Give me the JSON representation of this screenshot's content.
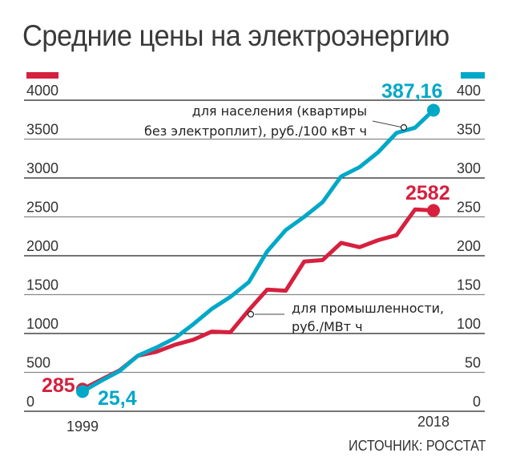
{
  "chart_data": {
    "type": "line",
    "title": "Средние цены на электроэнергию",
    "source": "ИСТОЧНИК: РОССТАТ",
    "x": [
      1999,
      2000,
      2001,
      2002,
      2003,
      2004,
      2005,
      2006,
      2007,
      2008,
      2009,
      2010,
      2011,
      2012,
      2013,
      2014,
      2015,
      2016,
      2017,
      2018
    ],
    "x_tick_labels": [
      "1999",
      "2018"
    ],
    "left_axis": {
      "ylim": [
        0,
        4000
      ],
      "ticks": [
        "0",
        "500",
        "1000",
        "1500",
        "2000",
        "2500",
        "3000",
        "3500",
        "4000"
      ]
    },
    "right_axis": {
      "ylim": [
        0,
        400
      ],
      "ticks": [
        "0",
        "50",
        "100",
        "150",
        "200",
        "250",
        "300",
        "350",
        "400"
      ]
    },
    "grid": true,
    "series": [
      {
        "name": "для промышленности, руб./МВт ч",
        "label_lines": [
          "для промышленности,",
          "руб./МВт ч"
        ],
        "axis": "left",
        "color": "#d6203e",
        "values": [
          285,
          405,
          525,
          715,
          765,
          855,
          920,
          1025,
          1015,
          1300,
          1565,
          1550,
          1925,
          1945,
          2165,
          2110,
          2200,
          2265,
          2595,
          2582
        ],
        "start_label": "285",
        "end_label": "2582"
      },
      {
        "name": "для населения (квартиры без электроплит), руб./100 кВт ч",
        "label_lines": [
          "для населения (квартиры",
          "без электроплит), руб./100 кВт ч"
        ],
        "axis": "right",
        "color": "#00a8c8",
        "values": [
          25.4,
          39,
          51.6,
          71.5,
          82,
          94,
          112,
          131.7,
          147,
          166,
          205.7,
          233,
          250,
          269,
          302,
          314,
          333,
          358,
          364.6,
          387.16
        ],
        "start_label": "25,4",
        "end_label": "387,16"
      }
    ]
  }
}
